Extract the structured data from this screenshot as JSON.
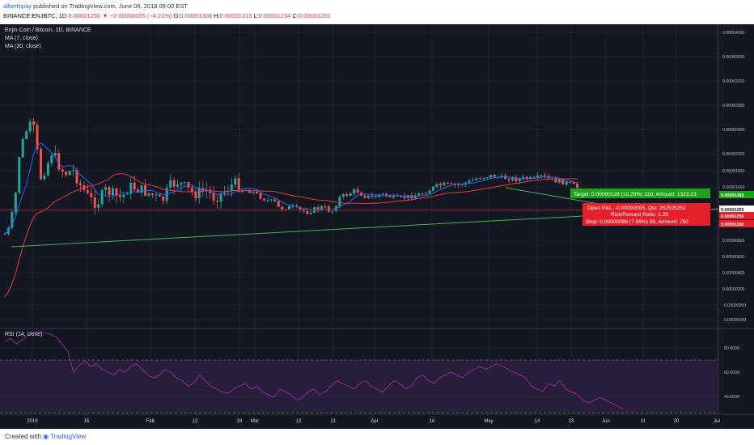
{
  "header": {
    "author": "alberthpay",
    "published": "published on TradingView.com, June 06, 2018 09:00 EST",
    "symbol_line": "BINANCE:ENJBTC, 1D",
    "last_price": "0.00001250",
    "change_arrow": "▼",
    "change": "−0.00000055 (−4.21%)",
    "o_label": "O:",
    "o_val": "0.00001308",
    "h_label": "H:",
    "h_val": "0.00001313",
    "l_label": "L:",
    "l_val": "0.00001234",
    "c_label": "C:",
    "c_val": "0.00001250"
  },
  "legend": {
    "title": "Enjin Coin / Bitcoin, 1D, BINANCE",
    "ma7": "MA (7, close)",
    "ma30": "MA (30, close)",
    "rsi": "RSI (14, close)"
  },
  "position": {
    "target": "Target: 0.00000128 (10.20%) 128, Amount: 1323.23",
    "open_pl": "Open P&L: -0.00000005, Qty: 252525252",
    "rr": "Risk/Reward Ratio: 1.29",
    "stop": "Stop: 0.00000099 (7.89%) 99, Amount: 750"
  },
  "footer": {
    "created": "Created with",
    "brand": "TradingView"
  },
  "colors": {
    "background": "#131722",
    "grid": "#2a2e39",
    "up": "#26a69a",
    "down": "#ef5350",
    "ma7": "#2962ff",
    "ma30": "#e53935",
    "trend": "#4caf50",
    "rsi": "#9c27b0",
    "rsi_band": "#2a1f3d",
    "target_box": "#1aa51a",
    "stop_box": "#e5202a"
  },
  "chart_data": [
    {
      "type": "candlestick",
      "title": "Enjin Coin / Bitcoin, 1D, BINANCE",
      "ylim": [
        -1e-06,
        4.2e-06
      ],
      "y_ticks": [
        "0.00004000",
        "0.00003600",
        "0.00003200",
        "0.00002800",
        "0.00002400",
        "0.00002000",
        "0.00001800",
        "0.00001600",
        "0.00001200",
        "0.00000800",
        "0.00000600",
        "0.00000400",
        "0.00000200",
        "-0.00000000",
        "-0.00000100"
      ],
      "y_tick_values": [
        4e-06,
        3.6e-06,
        3.2e-06,
        2.8e-06,
        2.4e-06,
        2e-06,
        1.8e-06,
        1.6e-06,
        1.2e-06,
        8e-07,
        6e-07,
        4e-07,
        2e-07,
        0.0,
        -1e-07
      ],
      "price_labels": [
        {
          "text": "0.00001383",
          "value": 1.383e-05,
          "color": "#1aa51a"
        },
        {
          "text": "0.00001255",
          "value": 1.255e-05,
          "color": "#ffffff"
        },
        {
          "text": "0.00001250",
          "value": 1.25e-05,
          "color": "#e5202a"
        },
        {
          "text": "0.00001156",
          "value": 1.156e-05,
          "color": "#e5202a"
        }
      ],
      "x_ticks": [
        "2018",
        "15",
        "Feb",
        "12",
        "26",
        "Mar",
        "12",
        "21",
        "Apr",
        "16",
        "May",
        "14",
        "23",
        "Jun",
        "11",
        "20",
        "Jul"
      ],
      "series": [
        {
          "name": "MA (7, close)",
          "color": "#2962ff"
        },
        {
          "name": "MA (30, close)",
          "color": "#e53935"
        }
      ]
    },
    {
      "type": "line",
      "title": "RSI (14, close)",
      "ylim": [
        30,
        90
      ],
      "y_ticks": [
        "80.0000",
        "60.0000",
        "40.0000"
      ],
      "y_tick_values": [
        80,
        60,
        40
      ],
      "bands": [
        70,
        30
      ],
      "values": [
        82,
        84,
        80,
        83,
        86,
        88,
        89,
        88,
        87,
        85,
        80,
        75,
        60,
        65,
        68,
        64,
        66,
        62,
        60,
        58,
        62,
        60,
        64,
        66,
        62,
        58,
        56,
        58,
        62,
        60,
        56,
        54,
        50,
        52,
        58,
        54,
        50,
        48,
        46,
        45,
        48,
        50,
        52,
        48,
        50,
        46,
        44,
        42,
        48,
        46,
        44,
        40,
        42,
        46,
        48,
        44,
        46,
        50,
        54,
        52,
        50,
        48,
        52,
        54,
        50,
        48,
        46,
        50,
        54,
        52,
        48,
        50,
        56,
        58,
        54,
        52,
        56,
        58,
        60,
        58,
        56,
        60,
        62,
        64,
        62,
        64,
        66,
        64,
        62,
        60,
        58,
        56,
        50,
        48,
        46,
        52,
        50,
        54,
        48,
        46,
        44,
        40,
        38,
        40,
        42,
        40,
        38,
        36,
        34
      ]
    }
  ]
}
